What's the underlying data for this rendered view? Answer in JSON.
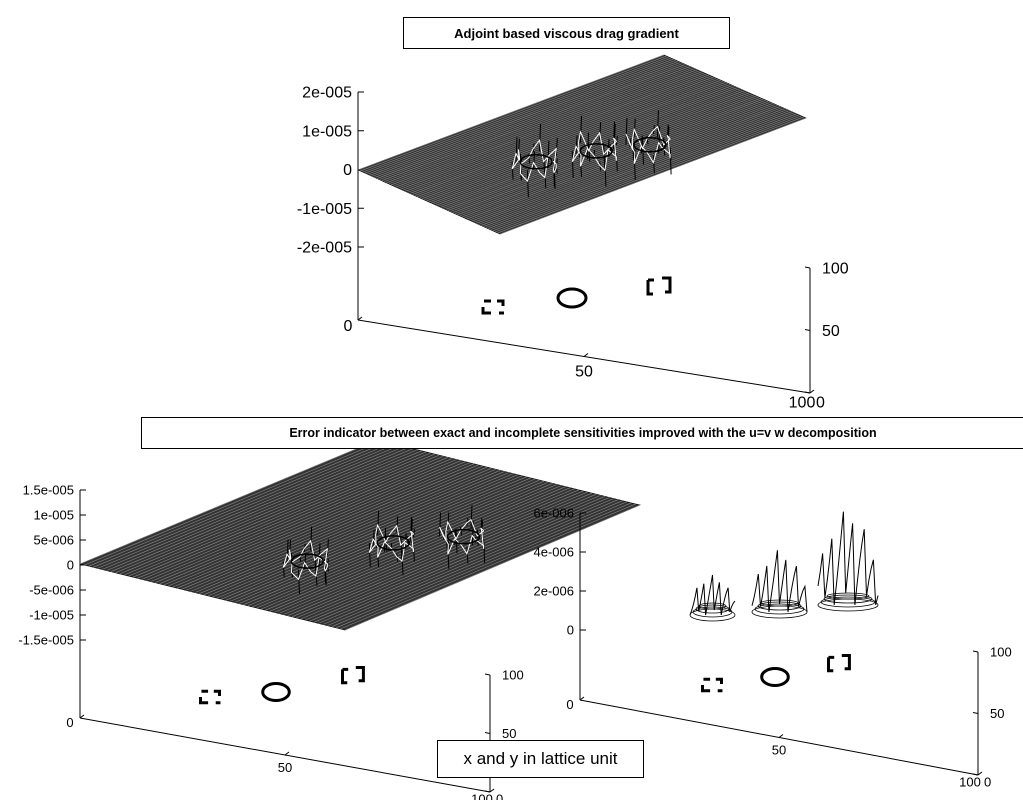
{
  "titles": {
    "top": "Adjoint based viscous drag gradient",
    "bottom": "Error indicator between exact and incomplete sensitivities improved with the u=v w decomposition"
  },
  "note": "x and y in lattice unit",
  "chart_data": [
    {
      "type": "surface3d",
      "title": "Adjoint based viscous drag gradient",
      "z_ticks": [
        "2e-005",
        "1e-005",
        "0",
        "-1e-005",
        "-2e-005"
      ],
      "z_values": [
        2e-05,
        1e-05,
        0,
        -1e-05,
        -2e-05
      ],
      "x_ticks": [
        "0",
        "50",
        "100"
      ],
      "y_ticks": [
        "0",
        "50",
        "100"
      ],
      "x_range": [
        0,
        100
      ],
      "y_range": [
        0,
        100
      ],
      "surface": "flat near 0 with oscillating peaks around three obstacles",
      "base_contour": "three obstacle outlines projected on the base plane"
    },
    {
      "type": "surface3d",
      "title": "Error indicator between exact and incomplete sensitivities improved with the u=v w decomposition",
      "z_ticks": [
        "1.5e-005",
        "1e-005",
        "5e-006",
        "0",
        "-5e-006",
        "-1e-005",
        "-1.5e-005"
      ],
      "z_values": [
        1.5e-05,
        1e-05,
        5e-06,
        0,
        -5e-06,
        -1e-05,
        -1.5e-05
      ],
      "x_ticks": [
        "0",
        "50",
        "100"
      ],
      "y_ticks": [
        "0",
        "50",
        "100"
      ],
      "x_range": [
        0,
        100
      ],
      "y_range": [
        0,
        100
      ]
    },
    {
      "type": "surface3d",
      "z_ticks": [
        "6e-006",
        "4e-006",
        "2e-006",
        "0"
      ],
      "z_values": [
        6e-06,
        4e-06,
        2e-06,
        0
      ],
      "x_ticks": [
        "0",
        "50",
        "100"
      ],
      "y_ticks": [
        "0",
        "50",
        "100"
      ],
      "x_range": [
        0,
        100
      ],
      "y_range": [
        0,
        100
      ]
    }
  ]
}
